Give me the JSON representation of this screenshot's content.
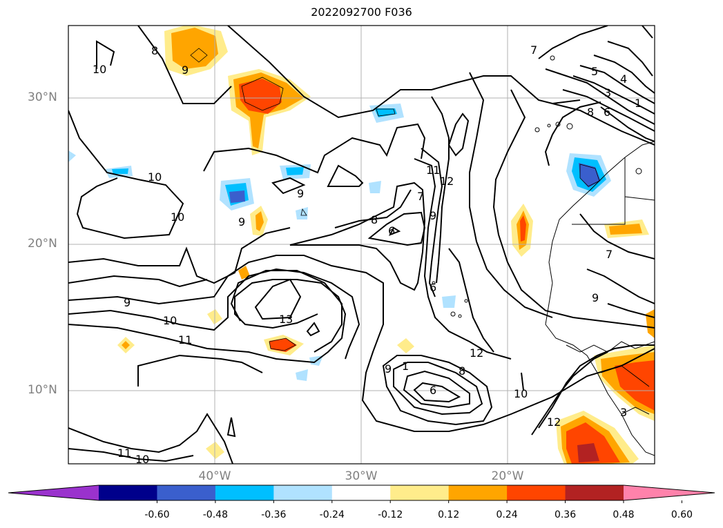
{
  "title": "2022092700 F036",
  "map": {
    "lat_labels": [
      "30°N",
      "20°N",
      "10°N"
    ],
    "lon_labels": [
      "40°W",
      "30°W",
      "20°W"
    ],
    "contour_labels": [
      "10",
      "8",
      "9",
      "7",
      "5",
      "4",
      "3",
      "1",
      "8",
      "6",
      "10",
      "10",
      "9",
      "9",
      "11",
      "12",
      "7",
      "9",
      "8",
      "6",
      "9",
      "10",
      "11",
      "13",
      "12",
      "9",
      "1",
      "8",
      "6",
      "10",
      "12",
      "7",
      "9",
      "11",
      "10",
      "6",
      "3"
    ]
  },
  "colorbar": {
    "colors": [
      "#9a32cd",
      "#00008b",
      "#3a5fcd",
      "#00bfff",
      "#b0e2ff",
      "#ffffff",
      "#ffec8b",
      "#ffa500",
      "#ff4500",
      "#b22222",
      "#ff82ab"
    ],
    "tick_labels": [
      "-0.60",
      "-0.48",
      "-0.36",
      "-0.24",
      "-0.12",
      "0.12",
      "0.24",
      "0.36",
      "0.48",
      "0.60"
    ]
  }
}
